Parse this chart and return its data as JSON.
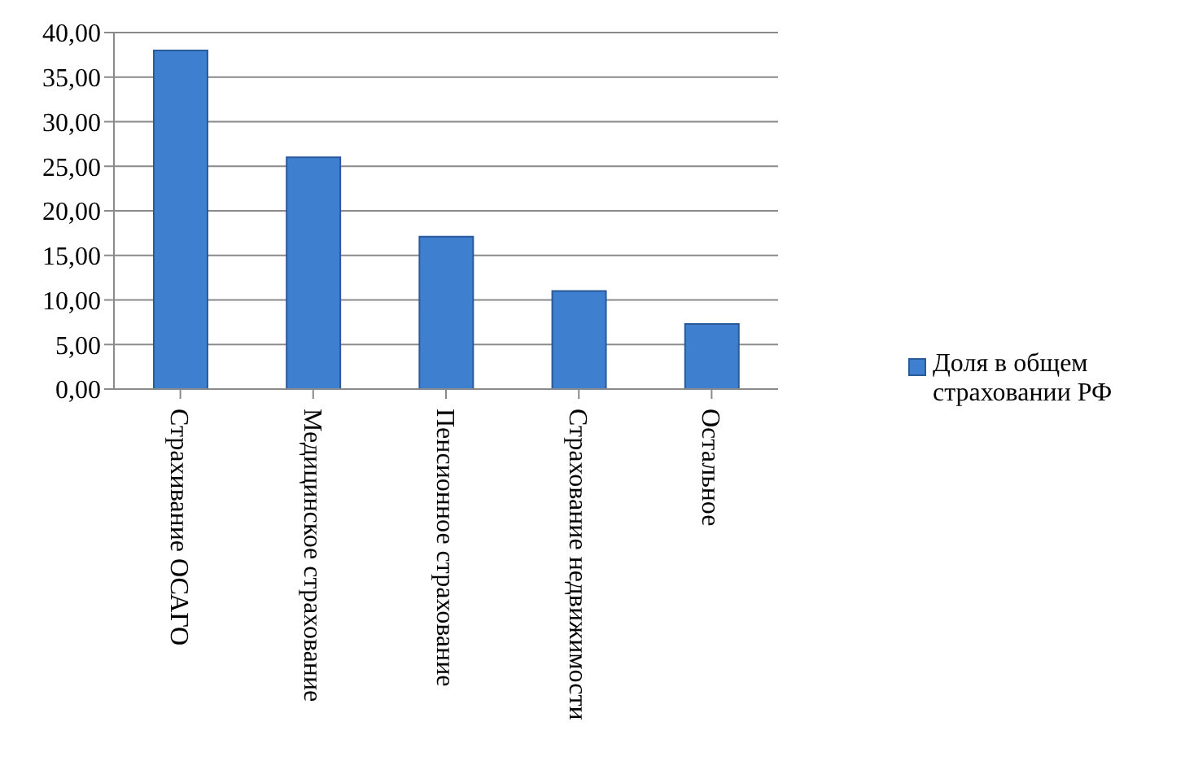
{
  "chart_data": {
    "type": "bar",
    "categories": [
      "Страхивание ОСАГО",
      "Медицинское страхование",
      "Пенсионное страхование",
      "Страхование недвижимости",
      "Остальное"
    ],
    "series": [
      {
        "name": "Доля в общем страховании РФ",
        "color": "#3f7fcf",
        "values": [
          38.0,
          26.0,
          17.1,
          11.0,
          7.3
        ]
      }
    ],
    "ylim": [
      0,
      40
    ],
    "yticks": [
      {
        "value": 0,
        "label": "0,00"
      },
      {
        "value": 5,
        "label": "5,00"
      },
      {
        "value": 10,
        "label": "10,00"
      },
      {
        "value": 15,
        "label": "15,00"
      },
      {
        "value": 20,
        "label": "20,00"
      },
      {
        "value": 25,
        "label": "25,00"
      },
      {
        "value": 30,
        "label": "30,00"
      },
      {
        "value": 35,
        "label": "35,00"
      },
      {
        "value": 40,
        "label": "40,00"
      }
    ],
    "grid": "y",
    "legend": "right"
  }
}
